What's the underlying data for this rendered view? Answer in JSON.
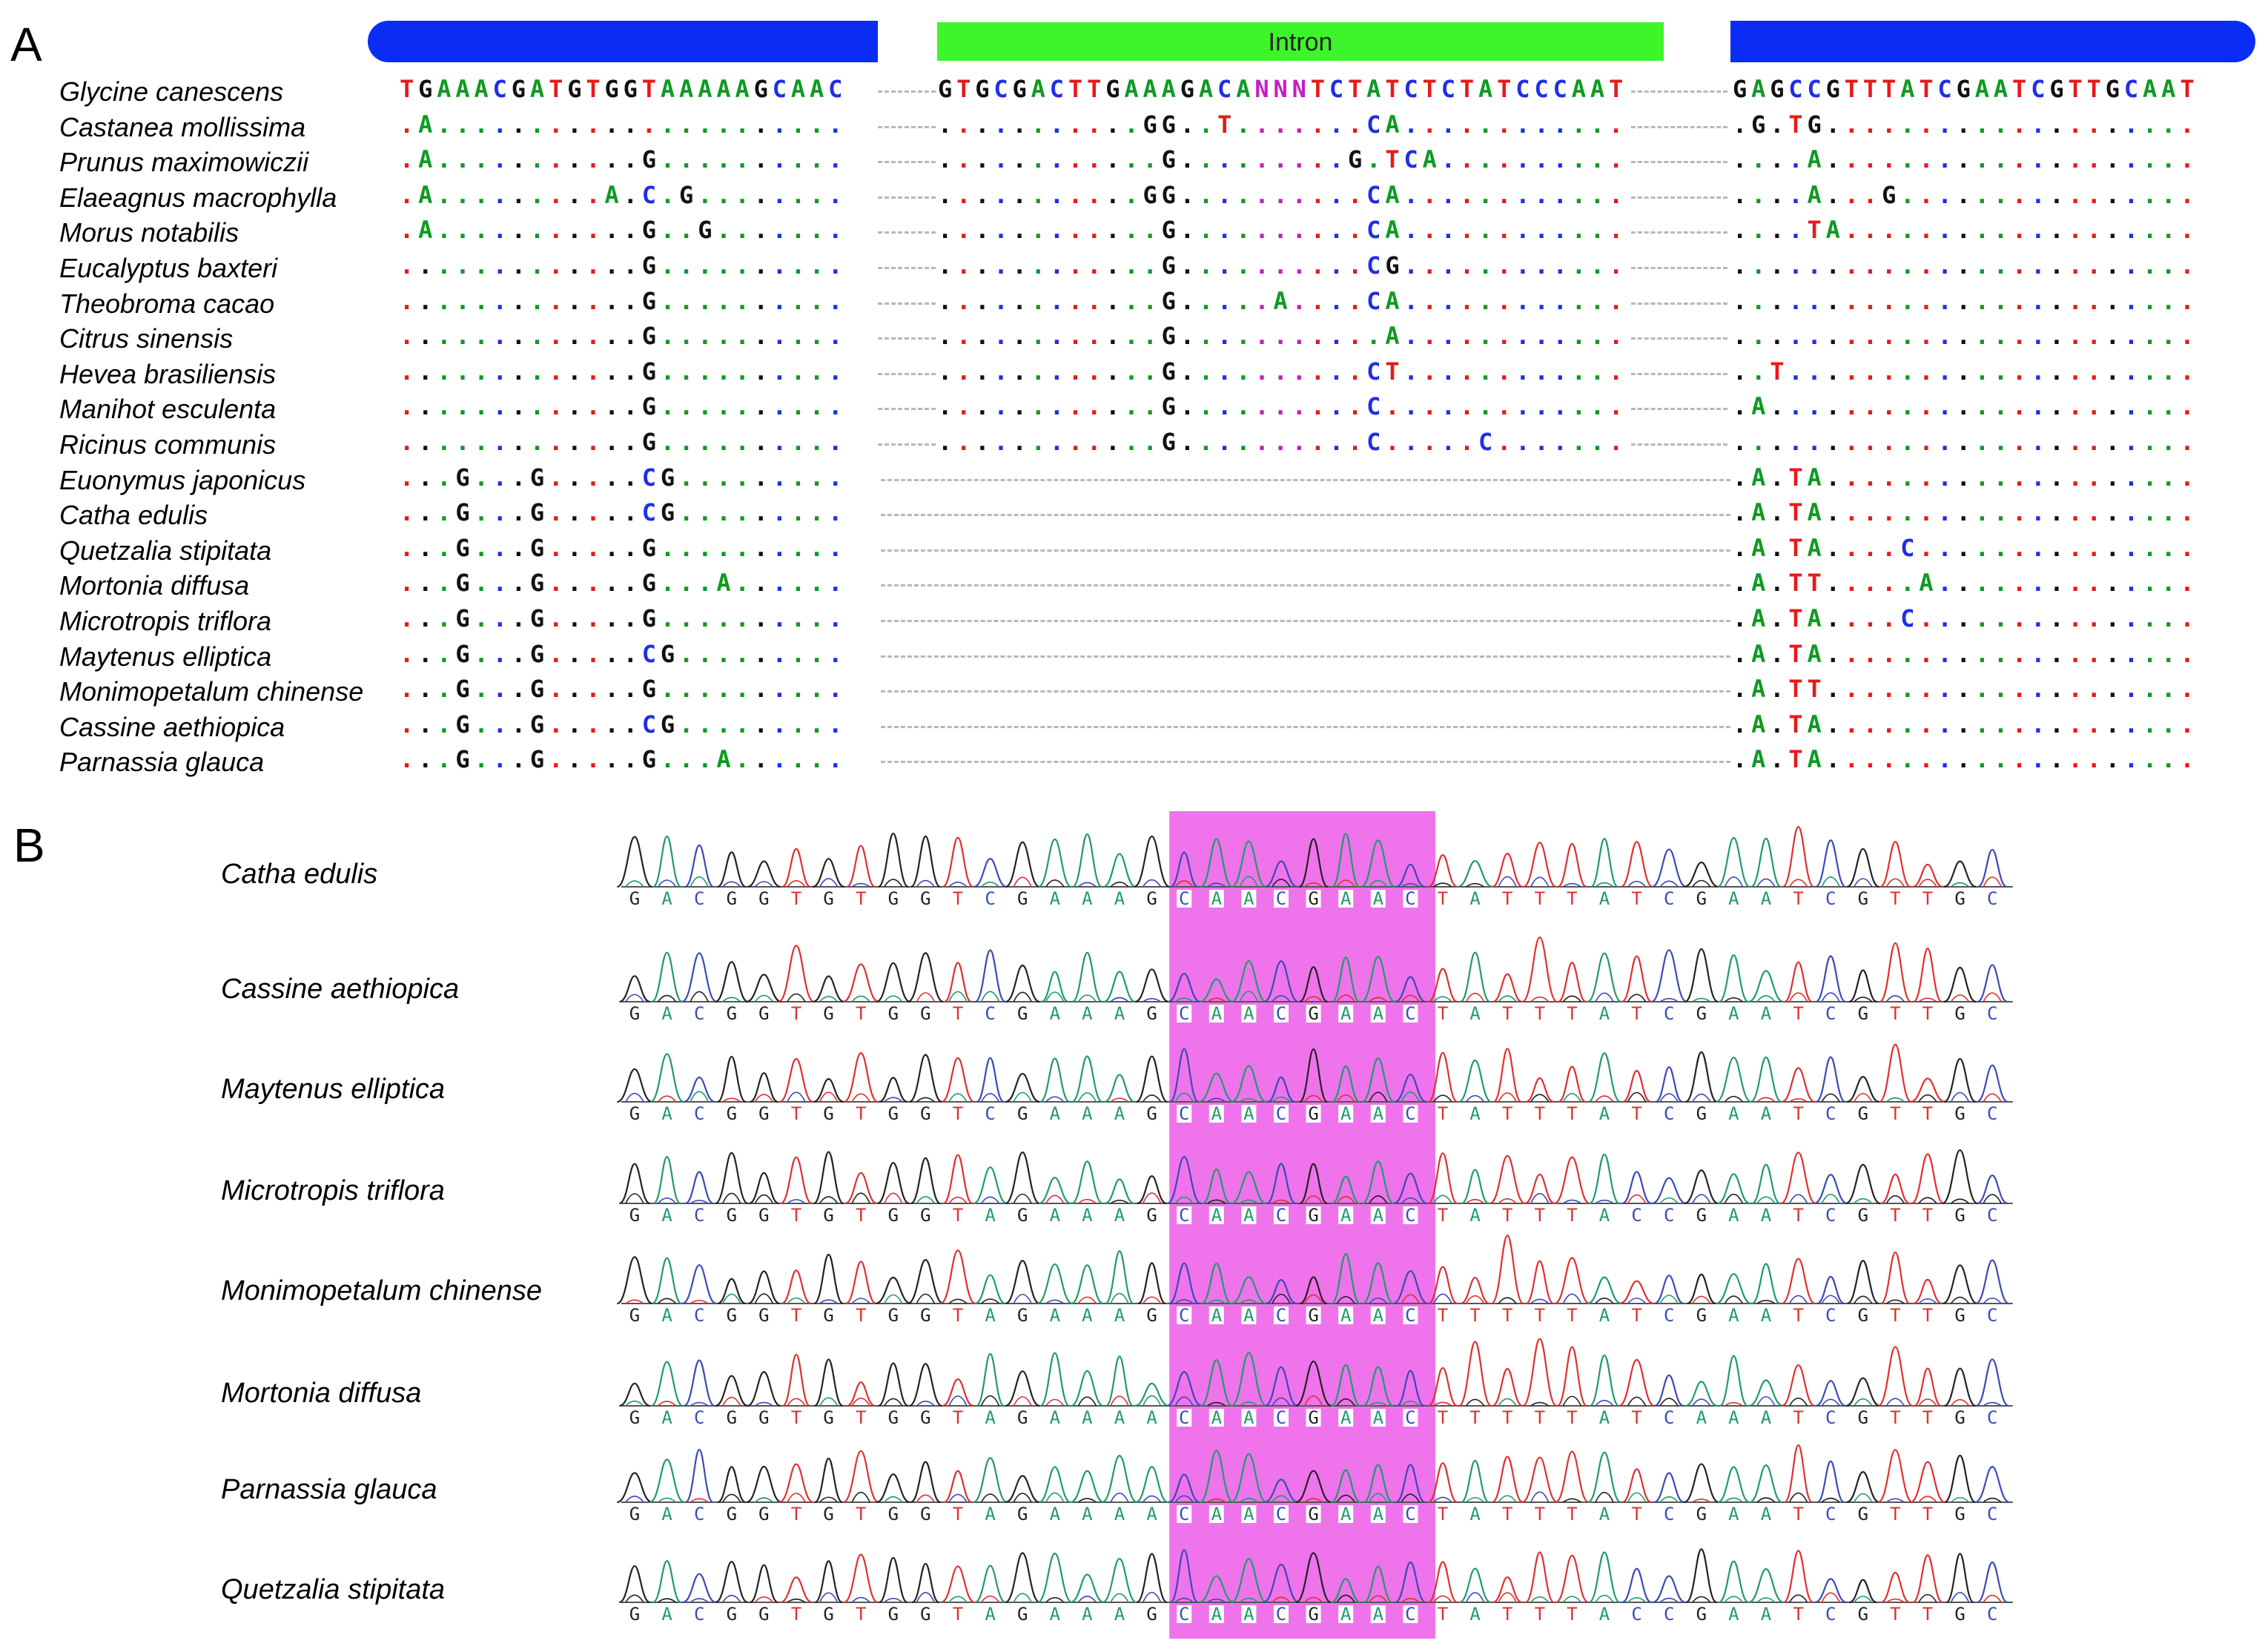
{
  "panels": {
    "a": "A",
    "b": "B"
  },
  "panel_a": {
    "intron_label": "Intron",
    "colors": {
      "exon_bar": "#0a2cf5",
      "intron_bar": "#3ef52a",
      "A": "#0f9a22",
      "C": "#1f2ee8",
      "G": "#111111",
      "T": "#e81919",
      "N": "#c21fc2",
      "gap": "#bbbbbb"
    },
    "rows": [
      {
        "species": "Glycine canescens",
        "s1": "TGAAACGATGTGGTAAAAAGCAAC",
        "s2": "GTGCGACTTGAAAGACANNNTCTATCTCTATCCCAAT",
        "s3": "GAGCCGTTTATCGAATCGTTGCAAT"
      },
      {
        "species": "Castanea mollissima",
        "s1": ".A......................",
        "s2": "...........GG..T.......CA............",
        "s3": ".G.TG...................."
      },
      {
        "species": "Prunus maximowiczii",
        "s1": ".A...........G..........",
        "s2": "............G.........G.TCA..........",
        "s3": "....A...................."
      },
      {
        "species": "Elaeagnus macrophylla",
        "s1": ".A.........A.C.G........",
        "s2": "...........GG..........CA............",
        "s3": "....A...G................"
      },
      {
        "species": "Morus notabilis",
        "s1": ".A...........G..G.......",
        "s2": "............G..........CA............",
        "s3": "....TA..................."
      },
      {
        "species": "Eucalyptus baxteri",
        "s1": ".............G..........",
        "s2": "............G..........CG............",
        "s3": "........................."
      },
      {
        "species": "Theobroma cacao",
        "s1": ".............G..........",
        "s2": "............G.....A....CA............",
        "s3": "........................."
      },
      {
        "species": "Citrus sinensis",
        "s1": ".............G..........",
        "s2": "............G...........A............",
        "s3": "........................."
      },
      {
        "species": "Hevea brasiliensis",
        "s1": ".............G..........",
        "s2": "............G..........CT............",
        "s3": "..T......................"
      },
      {
        "species": "Manihot esculenta",
        "s1": ".............G..........",
        "s2": "............G..........C.............",
        "s3": ".A......................."
      },
      {
        "species": "Ricinus communis",
        "s1": ".............G..........",
        "s2": "............G..........C.....C.......",
        "s3": "........................."
      },
      {
        "species": "Euonymus japonicus",
        "s1": "...G...G.....CG.........",
        "s2": "",
        "s3": ".A.TA...................."
      },
      {
        "species": "Catha edulis",
        "s1": "...G...G.....CG.........",
        "s2": "",
        "s3": ".A.TA...................."
      },
      {
        "species": "Quetzalia stipitata",
        "s1": "...G...G.....G..........",
        "s2": "",
        "s3": ".A.TA....C..............."
      },
      {
        "species": "Mortonia diffusa",
        "s1": "...G...G.....G...A......",
        "s2": "",
        "s3": ".A.TT.....A.............."
      },
      {
        "species": "Microtropis triflora",
        "s1": "...G...G.....G..........",
        "s2": "",
        "s3": ".A.TA....C..............."
      },
      {
        "species": "Maytenus elliptica",
        "s1": "...G...G.....CG.........",
        "s2": "",
        "s3": ".A.TA...................."
      },
      {
        "species": "Monimopetalum chinense",
        "s1": "...G...G.....G..........",
        "s2": "",
        "s3": ".A.TT...................."
      },
      {
        "species": "Cassine aethiopica",
        "s1": "...G...G.....CG.........",
        "s2": "",
        "s3": ".A.TA...................."
      },
      {
        "species": "Parnassia glauca",
        "s1": "...G...G.....G...A......",
        "s2": "",
        "s3": ".A.TA...................."
      }
    ]
  },
  "panel_b": {
    "colors": {
      "A": "#1f9a6e",
      "C": "#3a4ab8",
      "G": "#222222",
      "T": "#e03030",
      "highlight": "#ec5ce8"
    },
    "traces": [
      {
        "species": "Catha edulis",
        "seq": "GACGGTGTGGTCGAAAGCAACGAACTATTTATCGAATCGTTGC"
      },
      {
        "species": "Cassine aethiopica",
        "seq": "GACGGTGTGGTCGAAAGCAACGAACTATTTATCGAATCGTTGC"
      },
      {
        "species": "Maytenus elliptica",
        "seq": "GACGGTGTGGTCGAAAGCAACGAACTATTTATCGAATCGTTGC"
      },
      {
        "species": "Microtropis triflora",
        "seq": "GACGGTGTGGTAGAAAGCAACGAACTATTTACCGAATCGTTGC"
      },
      {
        "species": "Monimopetalum chinense",
        "seq": "GACGGTGTGGTAGAAAGCAACGAACTTTTTATCGAATCGTTGC"
      },
      {
        "species": "Mortonia diffusa",
        "seq": "GACGGTGTGGTAGAAAACAACGAACTTTTTATCAAATCGTTGC"
      },
      {
        "species": "Parnassia glauca",
        "seq": "GACGGTGTGGTAGAAAACAACGAACTATTTATCGAATCGTTGC"
      },
      {
        "species": "Quetzalia stipitata",
        "seq": "GACGGTGTGGTAGAAAGCAACGAACTATTTACCGAATCGTTGC"
      }
    ]
  }
}
